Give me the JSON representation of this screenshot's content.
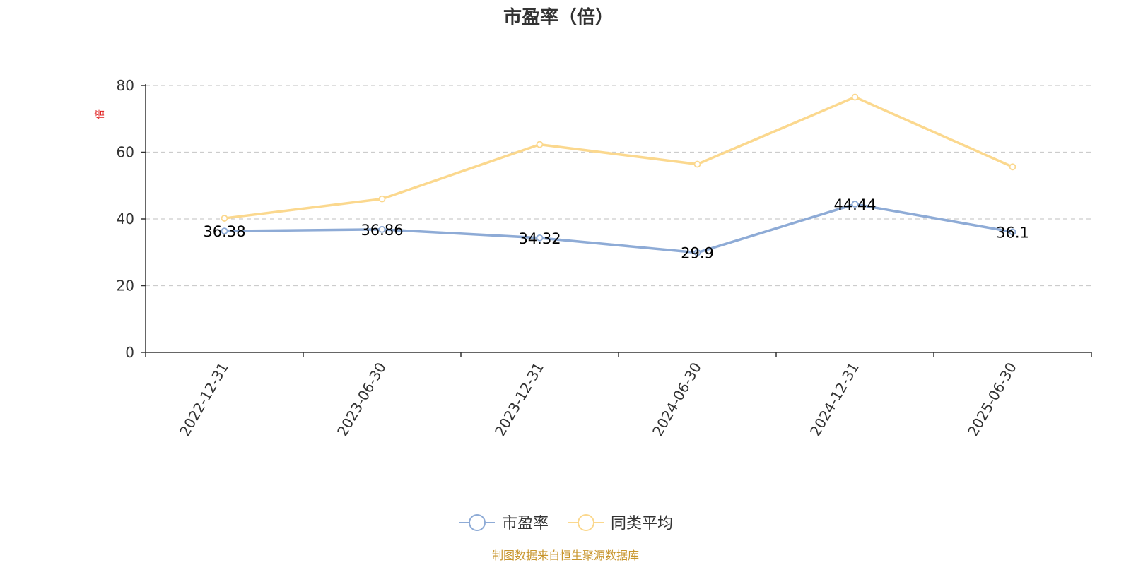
{
  "chart_data": {
    "type": "line",
    "title": "市盈率（倍）",
    "ylabel": "倍",
    "ylim": [
      0,
      80
    ],
    "yticks": [
      0,
      20,
      40,
      60,
      80
    ],
    "grid": true,
    "legend_position": "bottom",
    "categories": [
      "2022-12-31",
      "2023-06-30",
      "2023-12-31",
      "2024-06-30",
      "2024-12-31",
      "2025-06-30"
    ],
    "series": [
      {
        "name": "市盈率",
        "color": "#8eabd6",
        "values": [
          36.38,
          36.86,
          34.32,
          29.9,
          44.44,
          36.1
        ],
        "show_labels": true
      },
      {
        "name": "同类平均",
        "color": "#fbd88e",
        "values": [
          40.2,
          46.0,
          62.3,
          56.4,
          76.5,
          55.6
        ],
        "show_labels": false
      }
    ]
  },
  "source_note": "制图数据来自恒生聚源数据库"
}
